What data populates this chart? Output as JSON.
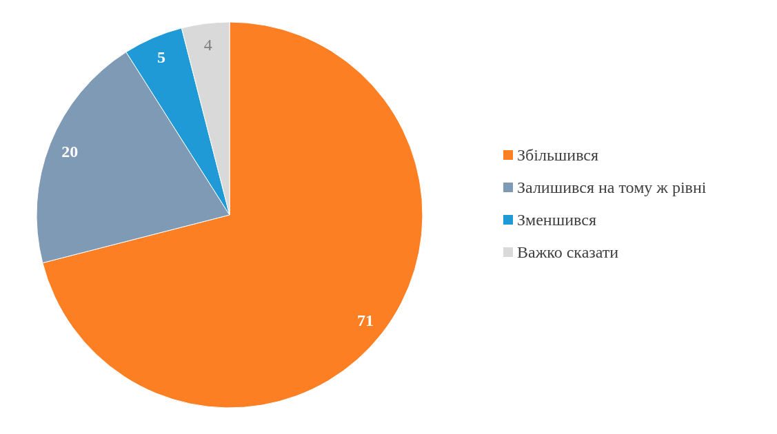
{
  "chart_data": {
    "type": "pie",
    "categories": [
      "Збільшився",
      "Залишився на тому ж рівні",
      "Зменшився",
      "Важко сказати"
    ],
    "values": [
      71,
      20,
      5,
      4
    ],
    "colors": [
      "#fd7f23",
      "#7f9ab5",
      "#1f9ad6",
      "#d9d9d9"
    ],
    "data_labels": true,
    "legend": "right"
  }
}
